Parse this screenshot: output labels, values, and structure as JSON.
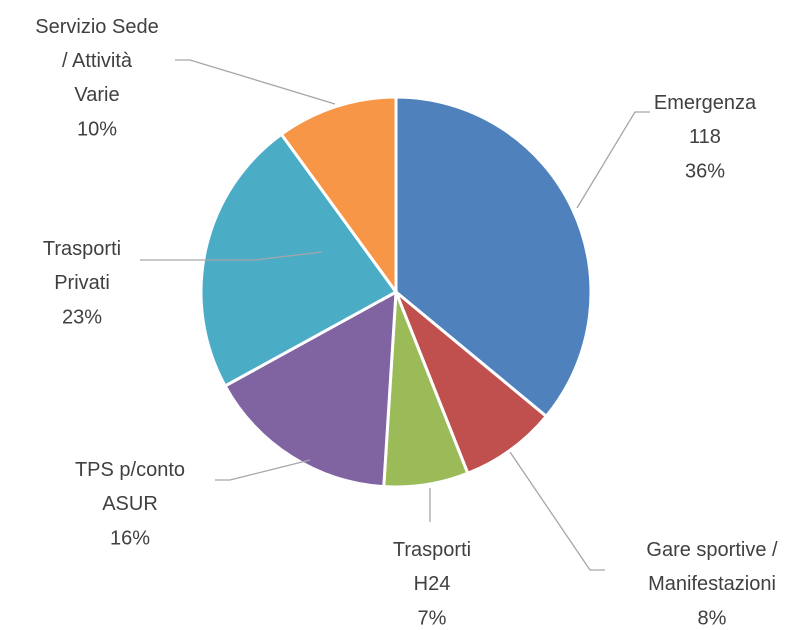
{
  "chart_data": {
    "type": "pie",
    "categories": [
      "Emergenza 118",
      "Gare sportive / Manifestazioni",
      "Trasporti H24",
      "TPS p/conto ASUR",
      "Trasporti Privati",
      "Servizio Sede / Attività Varie"
    ],
    "values": [
      36,
      8,
      7,
      16,
      23,
      10
    ],
    "value_labels": [
      "36%",
      "8%",
      "7%",
      "16%",
      "23%",
      "10%"
    ],
    "colors": [
      "#4f81bd",
      "#c0504d",
      "#9bbb59",
      "#8064a2",
      "#4bacc6",
      "#f79646"
    ]
  }
}
